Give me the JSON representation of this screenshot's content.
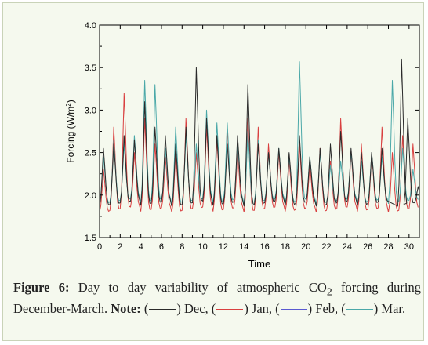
{
  "chart_data": {
    "type": "line",
    "xlabel": "Time",
    "ylabel_main": "Forcing (W/m",
    "ylabel_sup": "2",
    "ylabel_tail": ")",
    "xlim": [
      0,
      31
    ],
    "ylim": [
      1.5,
      4.0
    ],
    "xticks": [
      0,
      2,
      4,
      6,
      8,
      10,
      12,
      14,
      16,
      18,
      20,
      22,
      24,
      26,
      28,
      30
    ],
    "yticks": [
      1.5,
      2.0,
      2.5,
      3.0,
      3.5,
      4.0
    ],
    "ytick_labels": [
      "1.5",
      "2.0",
      "2.5",
      "3.0",
      "3.5",
      "4.0"
    ],
    "grid": false,
    "series": [
      {
        "name": "Dec",
        "color": "#2a2a2a",
        "peaks": [
          [
            0,
            2.55
          ],
          [
            1,
            2.6
          ],
          [
            2,
            2.7
          ],
          [
            3,
            2.65
          ],
          [
            4,
            3.1
          ],
          [
            5,
            2.8
          ],
          [
            6,
            2.7
          ],
          [
            7,
            2.6
          ],
          [
            8,
            2.8
          ],
          [
            9,
            3.5
          ],
          [
            10,
            2.9
          ],
          [
            11,
            2.7
          ],
          [
            12,
            2.6
          ],
          [
            13,
            2.7
          ],
          [
            14,
            3.3
          ],
          [
            15,
            2.6
          ],
          [
            16,
            2.5
          ],
          [
            17,
            2.55
          ],
          [
            18,
            2.5
          ],
          [
            19,
            2.7
          ],
          [
            20,
            2.45
          ],
          [
            21,
            2.55
          ],
          [
            22,
            2.6
          ],
          [
            23,
            2.75
          ],
          [
            24,
            2.55
          ],
          [
            25,
            2.5
          ],
          [
            26,
            2.5
          ],
          [
            27,
            2.55
          ],
          [
            28.9,
            3.6
          ],
          [
            29.5,
            2.9
          ],
          [
            30.5,
            2.1
          ]
        ],
        "base": 1.87
      },
      {
        "name": "Jan",
        "color": "#d94040",
        "peaks": [
          [
            0,
            2.3
          ],
          [
            1,
            2.8
          ],
          [
            2,
            3.2
          ],
          [
            3,
            2.5
          ],
          [
            4,
            2.9
          ],
          [
            5,
            2.6
          ],
          [
            6,
            2.45
          ],
          [
            7,
            2.5
          ],
          [
            8,
            2.9
          ],
          [
            9,
            2.5
          ],
          [
            10,
            2.8
          ],
          [
            11,
            2.65
          ],
          [
            12,
            2.8
          ],
          [
            13,
            2.5
          ],
          [
            14,
            2.9
          ],
          [
            15,
            2.8
          ],
          [
            16,
            2.6
          ],
          [
            17,
            2.5
          ],
          [
            18,
            2.4
          ],
          [
            19,
            2.6
          ],
          [
            20,
            2.35
          ],
          [
            21,
            2.55
          ],
          [
            22,
            2.4
          ],
          [
            23,
            2.9
          ],
          [
            24,
            2.5
          ],
          [
            25,
            2.6
          ],
          [
            26,
            2.5
          ],
          [
            27,
            2.8
          ],
          [
            28,
            2.5
          ],
          [
            29,
            2.7
          ],
          [
            30,
            2.6
          ]
        ],
        "base": 1.8
      },
      {
        "name": "Feb",
        "color": "#5a5ad0",
        "peaks": [],
        "base": 1.85
      },
      {
        "name": "Mar",
        "color": "#4aa8a8",
        "peaks": [
          [
            0,
            2.45
          ],
          [
            1,
            2.65
          ],
          [
            2,
            2.6
          ],
          [
            3,
            2.7
          ],
          [
            4,
            3.35
          ],
          [
            5,
            3.3
          ],
          [
            6,
            2.55
          ],
          [
            7,
            2.8
          ],
          [
            8,
            2.7
          ],
          [
            9,
            2.6
          ],
          [
            10,
            3.0
          ],
          [
            11,
            2.85
          ],
          [
            12,
            2.85
          ],
          [
            13,
            2.6
          ],
          [
            14,
            2.75
          ],
          [
            15,
            2.65
          ],
          [
            16,
            2.5
          ],
          [
            17,
            2.55
          ],
          [
            18,
            2.45
          ],
          [
            19,
            3.57
          ],
          [
            20,
            2.45
          ],
          [
            21,
            2.5
          ],
          [
            22,
            2.35
          ],
          [
            23,
            2.4
          ],
          [
            24,
            2.5
          ],
          [
            25,
            2.4
          ],
          [
            26,
            2.5
          ],
          [
            27,
            2.45
          ],
          [
            28,
            3.35
          ],
          [
            29,
            2.55
          ],
          [
            30,
            2.3
          ]
        ],
        "base": 1.9
      }
    ]
  },
  "caption": {
    "label": "Figure 6:",
    "text_a": " Day to day variability of atmospheric CO",
    "sub": "2",
    "text_b": " forcing during December-March. ",
    "note_label": "Note:",
    "open_paren": " (",
    "close_dec": ") Dec, (",
    "close_jan": ") Jan, (",
    "close_feb": ") Feb, (",
    "close_mar": ") Mar."
  }
}
